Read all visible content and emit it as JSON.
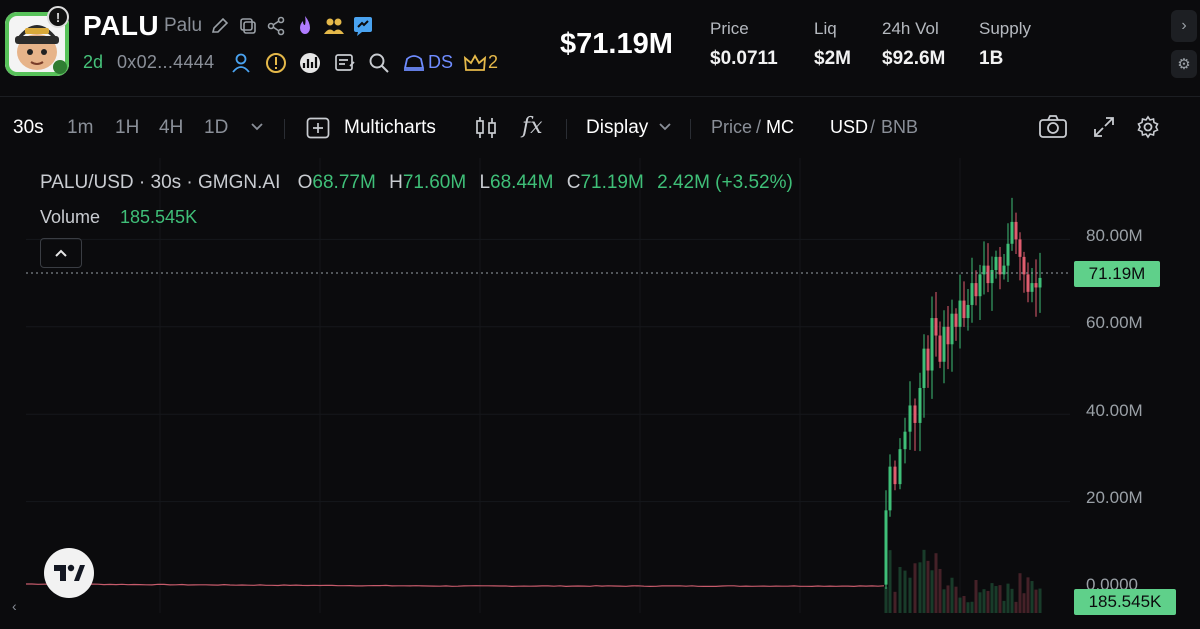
{
  "token": {
    "symbol": "PALU",
    "name": "Palu",
    "age": "2d",
    "address": "0x02...4444",
    "ds_label": "DS",
    "holders_badge": "2",
    "alert_glyph": "!"
  },
  "header_icons": [
    "edit-icon",
    "copy-icon",
    "share-icon",
    "fire-icon",
    "users-icon",
    "chat-icon",
    "user-icon",
    "warning-icon",
    "chart-logo-icon",
    "notes-icon",
    "search-icon",
    "ds-hat-icon",
    "crown-icon"
  ],
  "market": {
    "market_cap": "$71.19M",
    "stats": [
      {
        "label": "Price",
        "value": "$0.0711"
      },
      {
        "label": "Liq",
        "value": "$2M"
      },
      {
        "label": "24h Vol",
        "value": "$92.6M"
      },
      {
        "label": "Supply",
        "value": "1B"
      }
    ]
  },
  "toolbar": {
    "intervals": [
      "30s",
      "1m",
      "1H",
      "4H",
      "1D"
    ],
    "active_interval": "30s",
    "multicharts_label": "Multicharts",
    "fx_label": "fx",
    "display_label": "Display",
    "price_label": "Price",
    "mc_label": "MC",
    "usd_label": "USD",
    "bnb_label": "BNB",
    "separator": "/"
  },
  "legend": {
    "pair": "PALU/USD · 30s · GMGN.AI",
    "open_key": "O",
    "open": "68.77M",
    "high_key": "H",
    "high": "71.60M",
    "low_key": "L",
    "low": "68.44M",
    "close_key": "C",
    "close": "71.19M",
    "change": "2.42M (+3.52%)",
    "volume_label": "Volume",
    "volume_value": "185.545K"
  },
  "colors": {
    "up": "#3fbf78",
    "down": "#e05d6f",
    "badge": "#5fd08a",
    "bg": "#0b0b0d"
  },
  "chart_data": {
    "type": "candlestick",
    "y_ticks": [
      "80.00M",
      "60.00M",
      "40.00M",
      "20.00M",
      "0.0000"
    ],
    "ylim": [
      0,
      90000000
    ],
    "last_price_label": "71.19M",
    "last_volume_label": "185.545K",
    "grid": true,
    "series_shape": [
      {
        "segment": "flat",
        "approx_value": 0.1
      },
      {
        "segment": "spike",
        "approx_value": 20
      },
      {
        "segment": "rise",
        "approx_value": 55
      },
      {
        "segment": "top",
        "approx_value": 85
      },
      {
        "segment": "last",
        "approx_value": 71.19
      }
    ]
  }
}
